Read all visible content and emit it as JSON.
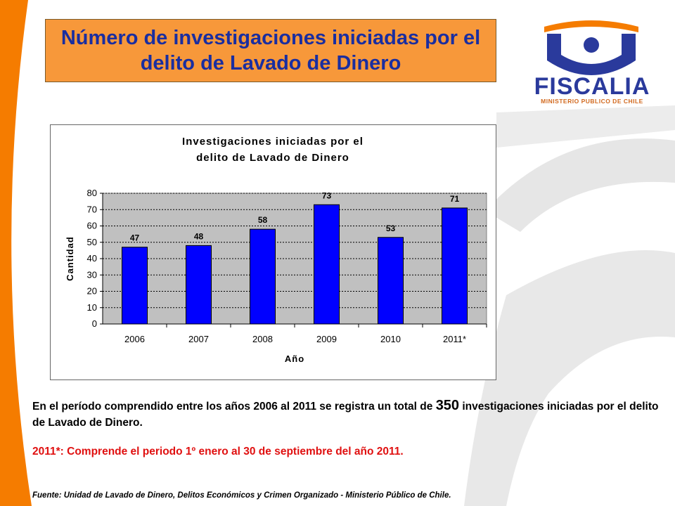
{
  "slide": {
    "title": "Número de investigaciones iniciadas por el delito de Lavado de Dinero",
    "logo_text": "FISCALIA",
    "logo_subtitle": "MINISTERIO PUBLICO DE CHILE",
    "summary_pre": "En el período comprendido entre los años 2006 al 2011 se registra un total de ",
    "summary_total": "350",
    "summary_post": " investigaciones iniciadas por el delito de Lavado de Dinero.",
    "note": "2011*: Comprende el periodo 1º enero al 30 de septiembre del año 2011.",
    "source_label": "Fuente",
    "source_text": ": Unidad de Lavado de Dinero, Delitos Económicos y Crimen Organizado - Ministerio Público de Chile.",
    "colors": {
      "title_bg": "#f7983a",
      "title_text": "#1a2ea0",
      "bar": "#0000ff",
      "plot_bg": "#c0c0c0",
      "note": "#e01010",
      "accent_orange": "#f57c00"
    }
  },
  "chart_data": {
    "type": "bar",
    "title_line1": "Investigaciones iniciadas por el",
    "title_line2": "delito de Lavado de Dinero",
    "categories": [
      "2006",
      "2007",
      "2008",
      "2009",
      "2010",
      "2011*"
    ],
    "values": [
      47,
      48,
      58,
      73,
      53,
      71
    ],
    "xlabel": "Año",
    "ylabel": "Cantidad",
    "ylim": [
      0,
      80
    ],
    "yticks": [
      0,
      10,
      20,
      30,
      40,
      50,
      60,
      70,
      80
    ],
    "grid": "dashed horizontal",
    "legend": "none"
  }
}
